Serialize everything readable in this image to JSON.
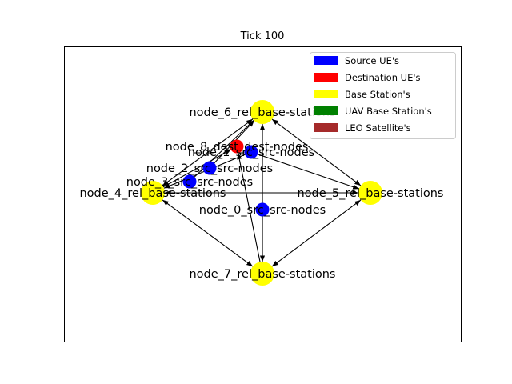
{
  "title": "Tick 100",
  "legend": {
    "placement": "top-right",
    "entries": [
      {
        "label": "Source UE's",
        "color": "#0000ff"
      },
      {
        "label": "Destination UE's",
        "color": "#ff0000"
      },
      {
        "label": "Base Station's",
        "color": "#ffff00"
      },
      {
        "label": "UAV Base Station's",
        "color": "#008000"
      },
      {
        "label": "LEO Satellite's",
        "color": "#a52a2a"
      }
    ]
  },
  "nodes": [
    {
      "id": "node_6",
      "label": "node_6_rel_base-stations",
      "group": "base-station",
      "color": "#ffff00"
    },
    {
      "id": "node_8",
      "label": "node_8_dest_dest-nodes",
      "group": "destination",
      "color": "#ff0000"
    },
    {
      "id": "node_1",
      "label": "node_1_src_src-nodes",
      "group": "source",
      "color": "#0000ff"
    },
    {
      "id": "node_2",
      "label": "node_2_src_src-nodes",
      "group": "source",
      "color": "#0000ff"
    },
    {
      "id": "node_3",
      "label": "node_3_src_src-nodes",
      "group": "source",
      "color": "#0000ff"
    },
    {
      "id": "node_4",
      "label": "node_4_rel_base-stations",
      "group": "base-station",
      "color": "#ffff00"
    },
    {
      "id": "node_5",
      "label": "node_5_rel_base-stations",
      "group": "base-station",
      "color": "#ffff00"
    },
    {
      "id": "node_0",
      "label": "node_0_src_src-nodes",
      "group": "source",
      "color": "#0000ff"
    },
    {
      "id": "node_7",
      "label": "node_7_rel_base-stations",
      "group": "base-station",
      "color": "#ffff00"
    }
  ],
  "edges": [
    {
      "from": "node_6",
      "to": "node_4",
      "both": true
    },
    {
      "from": "node_6",
      "to": "node_5",
      "both": true
    },
    {
      "from": "node_6",
      "to": "node_7",
      "both": true
    },
    {
      "from": "node_4",
      "to": "node_5",
      "both": true
    },
    {
      "from": "node_4",
      "to": "node_7",
      "both": true
    },
    {
      "from": "node_5",
      "to": "node_7",
      "both": true
    },
    {
      "from": "node_1",
      "to": "node_4",
      "both": false
    },
    {
      "from": "node_1",
      "to": "node_5",
      "both": false
    },
    {
      "from": "node_2",
      "to": "node_6",
      "both": false
    },
    {
      "from": "node_3",
      "to": "node_6",
      "both": false
    },
    {
      "from": "node_0",
      "to": "node_6",
      "both": false
    },
    {
      "from": "node_0",
      "to": "node_7",
      "both": false
    },
    {
      "from": "node_7",
      "to": "node_8",
      "both": false
    },
    {
      "from": "node_4",
      "to": "node_8",
      "both": false
    }
  ]
}
